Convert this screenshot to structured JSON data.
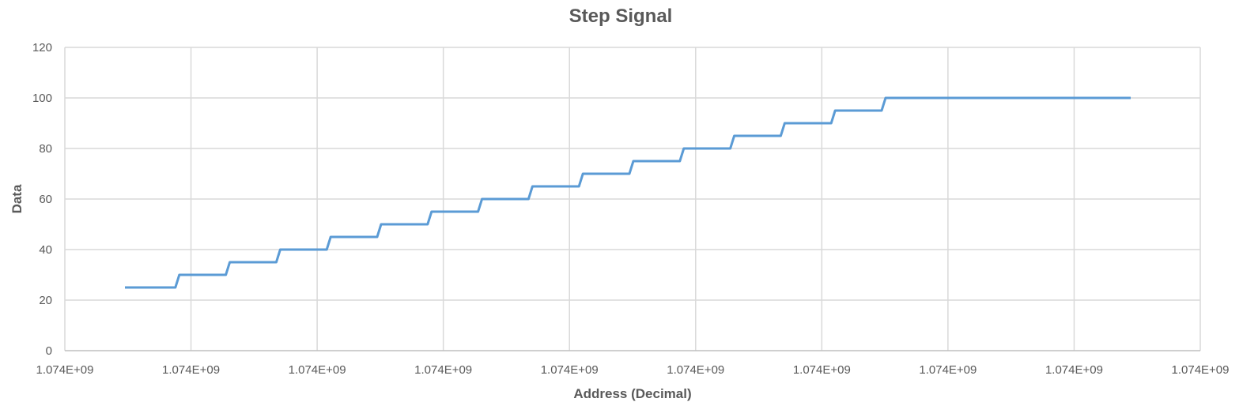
{
  "chart_data": {
    "type": "line",
    "title": "Step Signal",
    "xlabel": "Address (Decimal)",
    "ylabel": "Data",
    "ylim": [
      0,
      120
    ],
    "y_ticks": [
      0,
      20,
      40,
      60,
      80,
      100,
      120
    ],
    "x_tick_labels": [
      "1.074E+09",
      "1.074E+09",
      "1.074E+09",
      "1.074E+09",
      "1.074E+09",
      "1.074E+09",
      "1.074E+09",
      "1.074E+09",
      "1.074E+09",
      "1.074E+09"
    ],
    "grid": true,
    "legend": "none",
    "series": [
      {
        "values": [
          25,
          25,
          30,
          30,
          35,
          35,
          40,
          40,
          45,
          45,
          50,
          50,
          55,
          55,
          60,
          60,
          65,
          65,
          70,
          70,
          75,
          75,
          80,
          80,
          85,
          85,
          90,
          90,
          95,
          95,
          100,
          100
        ],
        "color": "#5b9bd5"
      }
    ]
  }
}
